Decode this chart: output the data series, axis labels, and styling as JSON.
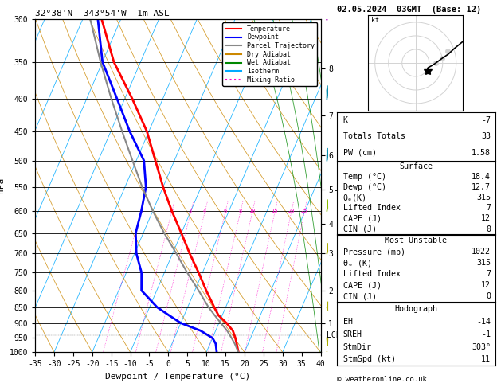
{
  "title_left": "32°38'N  343°54'W  1m ASL",
  "title_right": "02.05.2024  03GMT  (Base: 12)",
  "xlabel": "Dewpoint / Temperature (°C)",
  "ylabel_left": "hPa",
  "pressure_ticks": [
    300,
    350,
    400,
    450,
    500,
    550,
    600,
    650,
    700,
    750,
    800,
    850,
    900,
    950,
    1000
  ],
  "temp_min": -35,
  "temp_max": 40,
  "pres_min": 300,
  "pres_max": 1000,
  "skew_factor": 37.5,
  "temp_profile": {
    "pressure": [
      1000,
      970,
      950,
      925,
      900,
      875,
      850,
      800,
      750,
      700,
      650,
      600,
      550,
      500,
      450,
      400,
      350,
      300
    ],
    "temperature": [
      18.4,
      17.0,
      16.0,
      14.5,
      12.0,
      9.0,
      7.0,
      3.0,
      -1.0,
      -5.5,
      -10.0,
      -15.0,
      -20.0,
      -25.0,
      -30.5,
      -38.0,
      -47.0,
      -55.0
    ]
  },
  "dewpoint_profile": {
    "pressure": [
      1000,
      970,
      950,
      925,
      900,
      875,
      850,
      800,
      750,
      700,
      650,
      600,
      550,
      500,
      450,
      400,
      350,
      300
    ],
    "dewpoint": [
      12.7,
      11.5,
      10.0,
      6.0,
      0.0,
      -4.0,
      -8.0,
      -14.0,
      -16.0,
      -19.5,
      -22.0,
      -23.0,
      -24.5,
      -28.0,
      -35.0,
      -42.0,
      -50.0,
      -56.0
    ]
  },
  "parcel_trajectory": {
    "pressure": [
      1000,
      970,
      950,
      925,
      900,
      875,
      850,
      800,
      750,
      700,
      650,
      600,
      550,
      500,
      450,
      400,
      350,
      300
    ],
    "temperature": [
      18.4,
      16.5,
      15.0,
      13.0,
      10.5,
      8.0,
      5.5,
      1.0,
      -4.0,
      -9.0,
      -14.5,
      -20.0,
      -25.5,
      -31.0,
      -37.0,
      -43.5,
      -50.5,
      -58.0
    ]
  },
  "km_ticks": [
    1,
    2,
    3,
    4,
    5,
    6,
    7,
    8
  ],
  "km_pressures": [
    900,
    800,
    700,
    628,
    555,
    490,
    425,
    358
  ],
  "lcl_pressure": 940,
  "stats": {
    "K": -7,
    "Totals Totals": 33,
    "PW (cm)": 1.58,
    "Surface Temp (C)": 18.4,
    "Surface Dewp (C)": 12.7,
    "Surface theta_e (K)": 315,
    "Surface Lifted Index": 7,
    "Surface CAPE (J)": 12,
    "Surface CIN (J)": 0,
    "MU Pressure (mb)": 1022,
    "MU theta_e (K)": 315,
    "MU Lifted Index": 7,
    "MU CAPE (J)": 12,
    "MU CIN (J)": 0,
    "EH": -14,
    "SREH": -1,
    "StmDir": 303,
    "StmSpd (kt)": 11
  },
  "colors": {
    "temperature": "#FF0000",
    "dewpoint": "#0000FF",
    "parcel": "#888888",
    "dry_adiabat": "#CC8800",
    "wet_adiabat": "#008800",
    "isotherm": "#00AAFF",
    "mixing_ratio": "#FF00CC",
    "wind_purple": "#AA00BB",
    "wind_cyan": "#0088AA",
    "wind_teal": "#00AAAA",
    "wind_green": "#88BB00",
    "wind_yellow": "#AAAA00"
  },
  "legend_entries": [
    {
      "label": "Temperature",
      "color": "#FF0000",
      "ls": "solid"
    },
    {
      "label": "Dewpoint",
      "color": "#0000FF",
      "ls": "solid"
    },
    {
      "label": "Parcel Trajectory",
      "color": "#888888",
      "ls": "solid"
    },
    {
      "label": "Dry Adiabat",
      "color": "#CC8800",
      "ls": "solid"
    },
    {
      "label": "Wet Adiabat",
      "color": "#008800",
      "ls": "solid"
    },
    {
      "label": "Isotherm",
      "color": "#00AAFF",
      "ls": "solid"
    },
    {
      "label": "Mixing Ratio",
      "color": "#FF00CC",
      "ls": "dotted"
    }
  ],
  "wind_levels": [
    300,
    400,
    500,
    600,
    700,
    850,
    950,
    1000
  ],
  "wind_colors": [
    "#AA00BB",
    "#0088AA",
    "#0088AA",
    "#88BB00",
    "#AAAA00",
    "#AAAA00",
    "#AAAA00",
    "#AAAA00"
  ],
  "wind_speeds": [
    40,
    30,
    25,
    20,
    15,
    10,
    11,
    11
  ],
  "wind_dirs": [
    240,
    245,
    250,
    255,
    260,
    280,
    300,
    303
  ]
}
